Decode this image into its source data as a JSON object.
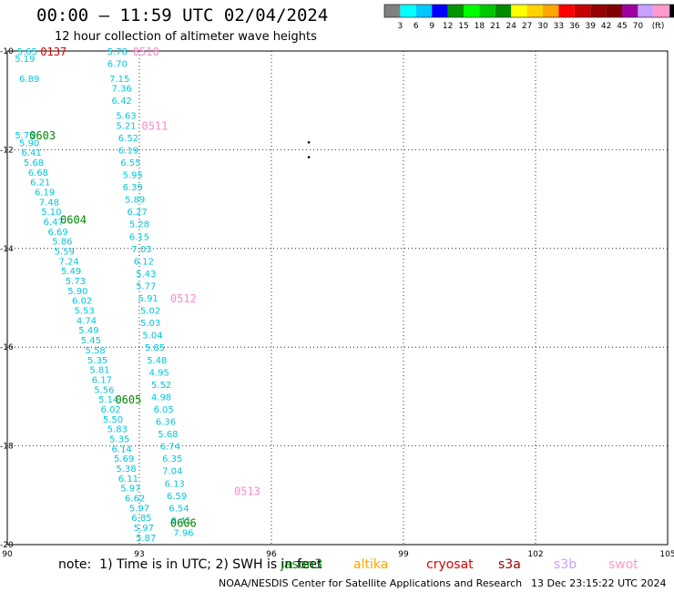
{
  "title": "00:00 – 11:59 UTC 02/04/2024",
  "subtitle": "12 hour collection of altimeter wave heights",
  "colorbar": {
    "colors": [
      "#808080",
      "#00ffff",
      "#00c8ff",
      "#0000ff",
      "#009600",
      "#00ff00",
      "#00c800",
      "#008c00",
      "#ffff00",
      "#ffd200",
      "#ffa500",
      "#ff0000",
      "#c80000",
      "#960000",
      "#800000",
      "#a000a0",
      "#c8a0ff",
      "#ff99cc",
      "#000000"
    ],
    "labels": [
      "3",
      "6",
      "9",
      "12",
      "15",
      "18",
      "21",
      "24",
      "27",
      "30",
      "33",
      "36",
      "39",
      "42",
      "45",
      "70"
    ],
    "unit": "(ft)"
  },
  "axes": {
    "x_ticks": [
      "90",
      "93",
      "96",
      "99",
      "102",
      "105"
    ],
    "y_ticks": [
      "-10",
      "-12",
      "-14",
      "-16",
      "-18",
      "-20"
    ],
    "xlim": [
      90,
      105
    ],
    "ylim": [
      -20,
      -10
    ]
  },
  "passes": [
    {
      "label": "0137",
      "color": "#dd0000",
      "lon": 91.05,
      "lat": -10.0
    },
    {
      "label": "0510",
      "color": "#ff88cc",
      "lon": 93.15,
      "lat": -10.0
    },
    {
      "label": "0511",
      "color": "#ff88cc",
      "lon": 93.35,
      "lat": -11.5
    },
    {
      "label": "0603",
      "color": "#008800",
      "lon": 90.8,
      "lat": -11.7
    },
    {
      "label": "0604",
      "color": "#008800",
      "lon": 91.5,
      "lat": -13.4
    },
    {
      "label": "0512",
      "color": "#ff88cc",
      "lon": 94.0,
      "lat": -15.0
    },
    {
      "label": "0605",
      "color": "#008800",
      "lon": 92.75,
      "lat": -17.05
    },
    {
      "label": "0513",
      "color": "#ff88cc",
      "lon": 95.45,
      "lat": -18.9
    },
    {
      "label": "0606",
      "color": "#008800",
      "lon": 94.0,
      "lat": -19.55
    }
  ],
  "wave_heights": [
    {
      "v": "5.65",
      "lon": 90.45,
      "lat": -10.0
    },
    {
      "v": "5.19",
      "lon": 90.4,
      "lat": -10.15
    },
    {
      "v": "6.89",
      "lon": 90.5,
      "lat": -10.55
    },
    {
      "v": "5.75",
      "lon": 90.4,
      "lat": -11.7
    },
    {
      "v": "5.90",
      "lon": 90.5,
      "lat": -11.85
    },
    {
      "v": "6.41",
      "lon": 90.55,
      "lat": -12.05
    },
    {
      "v": "5.68",
      "lon": 90.6,
      "lat": -12.25
    },
    {
      "v": "6.68",
      "lon": 90.7,
      "lat": -12.45
    },
    {
      "v": "6.21",
      "lon": 90.75,
      "lat": -12.65
    },
    {
      "v": "6.19",
      "lon": 90.85,
      "lat": -12.85
    },
    {
      "v": "7.48",
      "lon": 90.95,
      "lat": -13.05
    },
    {
      "v": "5.10",
      "lon": 91.0,
      "lat": -13.25
    },
    {
      "v": "6.47",
      "lon": 91.05,
      "lat": -13.45
    },
    {
      "v": "6.69",
      "lon": 91.15,
      "lat": -13.65
    },
    {
      "v": "5.86",
      "lon": 91.25,
      "lat": -13.85
    },
    {
      "v": "5.59",
      "lon": 91.3,
      "lat": -14.05
    },
    {
      "v": "7.24",
      "lon": 91.4,
      "lat": -14.25
    },
    {
      "v": "5.49",
      "lon": 91.45,
      "lat": -14.45
    },
    {
      "v": "5.73",
      "lon": 91.55,
      "lat": -14.65
    },
    {
      "v": "5.90",
      "lon": 91.6,
      "lat": -14.85
    },
    {
      "v": "6.02",
      "lon": 91.7,
      "lat": -15.05
    },
    {
      "v": "5.53",
      "lon": 91.75,
      "lat": -15.25
    },
    {
      "v": "4.74",
      "lon": 91.8,
      "lat": -15.45
    },
    {
      "v": "5.49",
      "lon": 91.85,
      "lat": -15.65
    },
    {
      "v": "5.45",
      "lon": 91.9,
      "lat": -15.85
    },
    {
      "v": "5.58",
      "lon": 92.0,
      "lat": -16.05
    },
    {
      "v": "5.35",
      "lon": 92.05,
      "lat": -16.25
    },
    {
      "v": "5.81",
      "lon": 92.1,
      "lat": -16.45
    },
    {
      "v": "6.17",
      "lon": 92.15,
      "lat": -16.65
    },
    {
      "v": "5.56",
      "lon": 92.2,
      "lat": -16.85
    },
    {
      "v": "5.14",
      "lon": 92.3,
      "lat": -17.05
    },
    {
      "v": "6.02",
      "lon": 92.35,
      "lat": -17.25
    },
    {
      "v": "5.50",
      "lon": 92.4,
      "lat": -17.45
    },
    {
      "v": "5.83",
      "lon": 92.5,
      "lat": -17.65
    },
    {
      "v": "5.35",
      "lon": 92.55,
      "lat": -17.85
    },
    {
      "v": "6.14",
      "lon": 92.6,
      "lat": -18.05
    },
    {
      "v": "5.69",
      "lon": 92.65,
      "lat": -18.25
    },
    {
      "v": "5.38",
      "lon": 92.7,
      "lat": -18.45
    },
    {
      "v": "6.11",
      "lon": 92.75,
      "lat": -18.65
    },
    {
      "v": "5.97",
      "lon": 92.8,
      "lat": -18.85
    },
    {
      "v": "6.62",
      "lon": 92.9,
      "lat": -19.05
    },
    {
      "v": "5.97",
      "lon": 93.0,
      "lat": -19.25
    },
    {
      "v": "6.85",
      "lon": 93.05,
      "lat": -19.45
    },
    {
      "v": "5.97",
      "lon": 93.1,
      "lat": -19.65
    },
    {
      "v": "5.87",
      "lon": 93.15,
      "lat": -19.85
    },
    {
      "v": "5.78",
      "lon": 92.5,
      "lat": -10.0
    },
    {
      "v": "6.70",
      "lon": 92.5,
      "lat": -10.25
    },
    {
      "v": "7.15",
      "lon": 92.55,
      "lat": -10.55
    },
    {
      "v": "7.36",
      "lon": 92.6,
      "lat": -10.75
    },
    {
      "v": "6.42",
      "lon": 92.6,
      "lat": -11.0
    },
    {
      "v": "5.63",
      "lon": 92.7,
      "lat": -11.3
    },
    {
      "v": "5.21",
      "lon": 92.7,
      "lat": -11.5
    },
    {
      "v": "6.52",
      "lon": 92.75,
      "lat": -11.75
    },
    {
      "v": "6.19",
      "lon": 92.75,
      "lat": -12.0
    },
    {
      "v": "6.55",
      "lon": 92.8,
      "lat": -12.25
    },
    {
      "v": "5.95",
      "lon": 92.85,
      "lat": -12.5
    },
    {
      "v": "6.39",
      "lon": 92.85,
      "lat": -12.75
    },
    {
      "v": "5.89",
      "lon": 92.9,
      "lat": -13.0
    },
    {
      "v": "6.27",
      "lon": 92.95,
      "lat": -13.25
    },
    {
      "v": "5.28",
      "lon": 93.0,
      "lat": -13.5
    },
    {
      "v": "6.15",
      "lon": 93.0,
      "lat": -13.75
    },
    {
      "v": "7.03",
      "lon": 93.05,
      "lat": -14.0
    },
    {
      "v": "6.12",
      "lon": 93.1,
      "lat": -14.25
    },
    {
      "v": "5.43",
      "lon": 93.15,
      "lat": -14.5
    },
    {
      "v": "5.77",
      "lon": 93.15,
      "lat": -14.75
    },
    {
      "v": "5.91",
      "lon": 93.2,
      "lat": -15.0
    },
    {
      "v": "5.02",
      "lon": 93.25,
      "lat": -15.25
    },
    {
      "v": "5.03",
      "lon": 93.25,
      "lat": -15.5
    },
    {
      "v": "5.04",
      "lon": 93.3,
      "lat": -15.75
    },
    {
      "v": "5.85",
      "lon": 93.35,
      "lat": -16.0
    },
    {
      "v": "5.48",
      "lon": 93.4,
      "lat": -16.25
    },
    {
      "v": "4.95",
      "lon": 93.45,
      "lat": -16.5
    },
    {
      "v": "5.52",
      "lon": 93.5,
      "lat": -16.75
    },
    {
      "v": "4.98",
      "lon": 93.5,
      "lat": -17.0
    },
    {
      "v": "6.05",
      "lon": 93.55,
      "lat": -17.25
    },
    {
      "v": "6.36",
      "lon": 93.6,
      "lat": -17.5
    },
    {
      "v": "5.68",
      "lon": 93.65,
      "lat": -17.75
    },
    {
      "v": "6.74",
      "lon": 93.7,
      "lat": -18.0
    },
    {
      "v": "6.35",
      "lon": 93.75,
      "lat": -18.25
    },
    {
      "v": "7.04",
      "lon": 93.75,
      "lat": -18.5
    },
    {
      "v": "6.13",
      "lon": 93.8,
      "lat": -18.75
    },
    {
      "v": "6.59",
      "lon": 93.85,
      "lat": -19.0
    },
    {
      "v": "6.54",
      "lon": 93.9,
      "lat": -19.25
    },
    {
      "v": "8.41",
      "lon": 93.95,
      "lat": -19.5
    },
    {
      "v": "7.96",
      "lon": 94.0,
      "lat": -19.75
    }
  ],
  "island_markers": [
    {
      "lon": 96.85,
      "lat": -12.15
    },
    {
      "lon": 96.85,
      "lat": -11.85
    }
  ],
  "footer": {
    "note": "note:  1) Time is in UTC; 2) SWH is in feet",
    "satellites": [
      {
        "name": "jason3",
        "color": "#008800"
      },
      {
        "name": "altika",
        "color": "#ffa500"
      },
      {
        "name": "cryosat",
        "color": "#dd0000"
      },
      {
        "name": "s3a",
        "color": "#990000"
      },
      {
        "name": "s3b",
        "color": "#c8a0ff"
      },
      {
        "name": "swot",
        "color": "#ff99cc"
      }
    ],
    "credit": "NOAA/NESDIS Center for Satellite Applications and Research",
    "timestamp": "13 Dec 23:15:22 UTC 2024"
  }
}
